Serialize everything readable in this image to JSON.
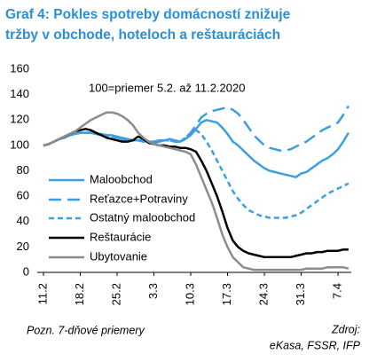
{
  "chart_data": {
    "type": "line",
    "title": [
      "Graf 4: Pokles spotreby domácností znižuje",
      "tržby v obchode, hoteloch a reštauráciách"
    ],
    "annotation": "100=priemer 5.2. až 11.2.2020",
    "note": "Pozn. 7-dňové priemery",
    "source": [
      "Zdroj:",
      "eKasa, FSSR, IFP"
    ],
    "categories": [
      "11.2",
      null,
      null,
      null,
      null,
      null,
      null,
      "18.2",
      null,
      null,
      null,
      null,
      null,
      null,
      "25.2",
      null,
      null,
      null,
      null,
      null,
      null,
      "3.3",
      null,
      null,
      null,
      null,
      null,
      null,
      "10.3",
      null,
      null,
      null,
      null,
      null,
      null,
      "17.3",
      null,
      null,
      null,
      null,
      null,
      null,
      "24.3",
      null,
      null,
      null,
      null,
      null,
      null,
      "31.3",
      null,
      null,
      null,
      null,
      null,
      null,
      "7.4",
      null,
      null
    ],
    "ylim": [
      0,
      160
    ],
    "yticks": [
      0,
      20,
      40,
      60,
      80,
      100,
      120,
      140,
      160
    ],
    "series": [
      {
        "name": "Maloobchod",
        "color": "#3d9ee0",
        "dash": "solid",
        "values": [
          100,
          101,
          103,
          105,
          106,
          108,
          109,
          110,
          110,
          110,
          109,
          109,
          108,
          108,
          107,
          106,
          105,
          104,
          104,
          104,
          103,
          103,
          104,
          104,
          105,
          104,
          103,
          105,
          108,
          113,
          118,
          120,
          119,
          118,
          114,
          109,
          103,
          100,
          96,
          92,
          88,
          85,
          82,
          80,
          79,
          78,
          77,
          76,
          75,
          78,
          79,
          82,
          85,
          88,
          90,
          93,
          97,
          103,
          110
        ]
      },
      {
        "name": "Reťazce+Potraviny",
        "color": "#3d9ee0",
        "dash": "long",
        "values": [
          100,
          101,
          103,
          105,
          107,
          108,
          109,
          110,
          110,
          110,
          109,
          108,
          107,
          107,
          106,
          105,
          104,
          104,
          104,
          103,
          103,
          102,
          103,
          104,
          104,
          103,
          103,
          106,
          110,
          116,
          122,
          125,
          127,
          128,
          129,
          130,
          128,
          125,
          120,
          114,
          108,
          104,
          100,
          98,
          97,
          96,
          96,
          97,
          99,
          101,
          103,
          106,
          109,
          112,
          114,
          116,
          118,
          124,
          131
        ]
      },
      {
        "name": "Ostatný maloobchod",
        "color": "#3d9ee0",
        "dash": "short",
        "values": [
          100,
          101,
          103,
          105,
          106,
          108,
          109,
          110,
          110,
          110,
          109,
          109,
          108,
          107,
          106,
          105,
          104,
          104,
          104,
          103,
          103,
          102,
          103,
          104,
          104,
          103,
          103,
          106,
          110,
          112,
          109,
          103,
          96,
          88,
          80,
          72,
          64,
          58,
          53,
          49,
          47,
          45,
          44,
          43,
          43,
          43,
          43,
          44,
          45,
          47,
          50,
          53,
          56,
          59,
          62,
          64,
          66,
          68,
          70
        ]
      },
      {
        "name": "Reštaurácie",
        "color": "#000000",
        "dash": "solid",
        "values": [
          100,
          101,
          103,
          105,
          107,
          109,
          111,
          112,
          113,
          112,
          110,
          108,
          106,
          105,
          104,
          103,
          103,
          104,
          107,
          105,
          102,
          101,
          100,
          100,
          99,
          99,
          98,
          98,
          97,
          95,
          88,
          80,
          70,
          60,
          48,
          35,
          25,
          20,
          17,
          15,
          14,
          13,
          12,
          12,
          12,
          12,
          12,
          12,
          13,
          14,
          15,
          15,
          16,
          16,
          17,
          17,
          17,
          18,
          18
        ]
      },
      {
        "name": "Ubytovanie",
        "color": "#8c8c8c",
        "dash": "solid",
        "values": [
          100,
          101,
          103,
          105,
          107,
          109,
          111,
          114,
          117,
          120,
          122,
          124,
          126,
          126,
          125,
          123,
          120,
          116,
          110,
          106,
          103,
          101,
          100,
          99,
          98,
          97,
          96,
          95,
          93,
          85,
          75,
          65,
          55,
          43,
          30,
          20,
          12,
          8,
          4,
          3,
          2,
          2,
          2,
          2,
          2,
          2,
          2,
          2,
          2,
          2,
          3,
          3,
          3,
          3,
          4,
          4,
          4,
          4,
          3
        ]
      }
    ]
  }
}
